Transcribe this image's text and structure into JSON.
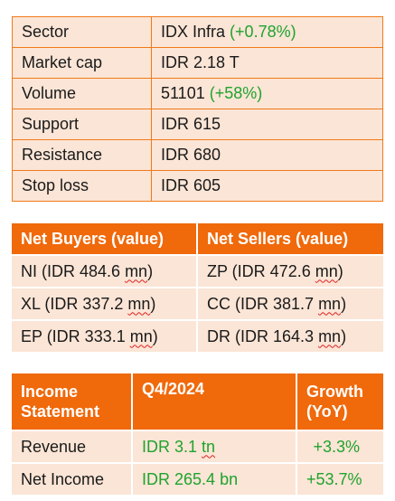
{
  "stock_info": {
    "rows": [
      {
        "label": "Sector",
        "value": "IDX Infra",
        "change": "(+0.78%)"
      },
      {
        "label": "Market cap",
        "value": "IDR 2.18 T",
        "change": ""
      },
      {
        "label": "Volume",
        "value": "51101",
        "change": "(+58%)"
      },
      {
        "label": "Support",
        "value": "IDR 615",
        "change": ""
      },
      {
        "label": "Resistance",
        "value": "IDR 680",
        "change": ""
      },
      {
        "label": "Stop loss",
        "value": "IDR 605",
        "change": ""
      }
    ],
    "change_color": "#1fa32e",
    "border_color": "#f07a1a",
    "fill_color": "#fbe5d6"
  },
  "brokers": {
    "headers": [
      "Net Buyers (value)",
      "Net Sellers (value)"
    ],
    "rows": [
      {
        "buyer": "NI (IDR 484.6",
        "buyer_unit": "mn",
        "seller": "ZP (IDR 472.6",
        "seller_unit": "mn"
      },
      {
        "buyer": "XL (IDR 337.2",
        "buyer_unit": "mn",
        "seller": "CC (IDR 381.7",
        "seller_unit": "mn"
      },
      {
        "buyer": "EP (IDR 333.1",
        "buyer_unit": "mn",
        "seller": "DR (IDR 164.3",
        "seller_unit": "mn"
      }
    ],
    "header_color": "#f0690a"
  },
  "income": {
    "headers": [
      "Income Statement",
      "Q4/2024",
      "Growth (YoY)"
    ],
    "rows": [
      {
        "label": "Revenue",
        "value": "IDR 3.1",
        "unit": "tn",
        "growth": "+3.3%"
      },
      {
        "label": "Net Income",
        "value": "IDR 265.4",
        "unit": "bn",
        "growth": "+53.7%"
      }
    ]
  }
}
